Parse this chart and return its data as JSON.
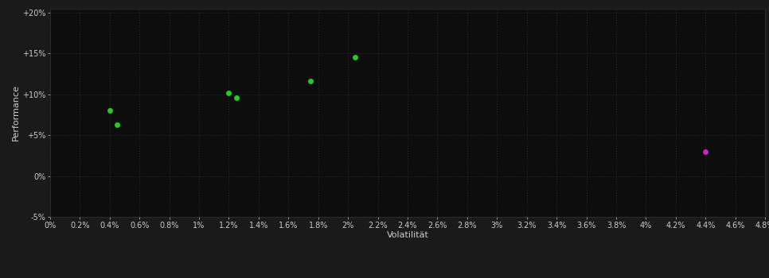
{
  "background_color": "#1a1a1a",
  "plot_bg_color": "#0d0d0d",
  "grid_color": "#2a2a2a",
  "text_color": "#cccccc",
  "green_points": [
    [
      0.004,
      0.08
    ],
    [
      0.0045,
      0.063
    ],
    [
      0.012,
      0.102
    ],
    [
      0.0125,
      0.096
    ],
    [
      0.0175,
      0.116
    ],
    [
      0.0205,
      0.145
    ]
  ],
  "magenta_points": [
    [
      0.044,
      0.03
    ]
  ],
  "green_color": "#22cc22",
  "magenta_color": "#cc22cc",
  "xlim": [
    0.0,
    0.048
  ],
  "ylim": [
    -0.05,
    0.205
  ],
  "xticks": [
    0.0,
    0.002,
    0.004,
    0.006,
    0.008,
    0.01,
    0.012,
    0.014,
    0.016,
    0.018,
    0.02,
    0.022,
    0.024,
    0.026,
    0.028,
    0.03,
    0.032,
    0.034,
    0.036,
    0.038,
    0.04,
    0.042,
    0.044,
    0.046,
    0.048
  ],
  "xtick_labels": [
    "0%",
    "0.2%",
    "0.4%",
    "0.6%",
    "0.8%",
    "1%",
    "1.2%",
    "1.4%",
    "1.6%",
    "1.8%",
    "2%",
    "2.2%",
    "2.4%",
    "2.6%",
    "2.8%",
    "3%",
    "3.2%",
    "3.4%",
    "3.6%",
    "3.8%",
    "4%",
    "4.2%",
    "4.4%",
    "4.6%",
    "4.8%"
  ],
  "yticks": [
    -0.05,
    0.0,
    0.05,
    0.1,
    0.15,
    0.2
  ],
  "ytick_labels": [
    "-5%",
    "0%",
    "+5%",
    "+10%",
    "+15%",
    "+20%"
  ],
  "xlabel": "Volatilität",
  "ylabel": "Performance",
  "marker_size": 5,
  "axis_fontsize": 8,
  "tick_fontsize": 7
}
